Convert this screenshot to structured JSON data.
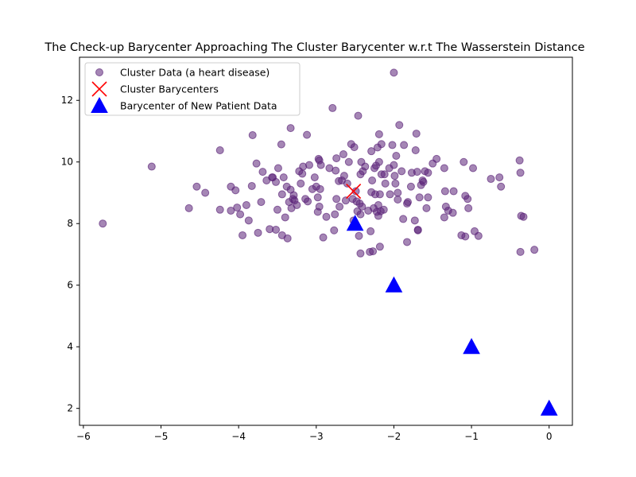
{
  "chart_data": {
    "type": "scatter",
    "title": "The Check-up Barycenter Approaching The Cluster Barycenter w.r.t The Wasserstein Distance",
    "xlabel": "",
    "ylabel": "",
    "xlim": [
      -6.05,
      0.3
    ],
    "ylim": [
      1.45,
      13.4
    ],
    "xticks": [
      -6,
      -5,
      -4,
      -3,
      -2,
      -1,
      0
    ],
    "yticks": [
      2,
      4,
      6,
      8,
      10,
      12
    ],
    "grid": false,
    "legend_position": "top-left",
    "series": [
      {
        "name": "Cluster Data (a heart disease)",
        "marker": "circle",
        "color": "#5b2378",
        "opacity": 0.55,
        "points": [
          [
            -5.75,
            8.0
          ],
          [
            -5.12,
            9.85
          ],
          [
            -4.64,
            8.5
          ],
          [
            -4.54,
            9.2
          ],
          [
            -4.43,
            9.0
          ],
          [
            -4.24,
            10.38
          ],
          [
            -4.24,
            8.45
          ],
          [
            -4.1,
            9.2
          ],
          [
            -4.1,
            8.42
          ],
          [
            -4.04,
            9.08
          ],
          [
            -4.02,
            8.52
          ],
          [
            -3.98,
            8.3
          ],
          [
            -3.95,
            7.62
          ],
          [
            -3.9,
            8.6
          ],
          [
            -3.87,
            8.1
          ],
          [
            -3.83,
            9.22
          ],
          [
            -3.82,
            10.87
          ],
          [
            -3.77,
            9.95
          ],
          [
            -3.75,
            7.7
          ],
          [
            -3.71,
            8.7
          ],
          [
            -3.69,
            9.68
          ],
          [
            -3.64,
            9.4
          ],
          [
            -3.6,
            7.82
          ],
          [
            -3.57,
            9.5
          ],
          [
            -3.56,
            9.5
          ],
          [
            -3.52,
            9.35
          ],
          [
            -3.52,
            7.8
          ],
          [
            -3.5,
            8.45
          ],
          [
            -3.49,
            9.8
          ],
          [
            -3.45,
            10.57
          ],
          [
            -3.44,
            8.95
          ],
          [
            -3.44,
            7.62
          ],
          [
            -3.42,
            9.5
          ],
          [
            -3.4,
            8.2
          ],
          [
            -3.38,
            9.2
          ],
          [
            -3.37,
            7.52
          ],
          [
            -3.35,
            8.7
          ],
          [
            -3.33,
            11.1
          ],
          [
            -3.33,
            9.1
          ],
          [
            -3.32,
            8.5
          ],
          [
            -3.3,
            8.8
          ],
          [
            -3.29,
            8.92
          ],
          [
            -3.28,
            8.75
          ],
          [
            -3.25,
            8.6
          ],
          [
            -3.22,
            9.7
          ],
          [
            -3.2,
            9.3
          ],
          [
            -3.18,
            9.62
          ],
          [
            -3.17,
            9.85
          ],
          [
            -3.14,
            8.8
          ],
          [
            -3.12,
            10.88
          ],
          [
            -3.11,
            8.72
          ],
          [
            -3.09,
            9.9
          ],
          [
            -3.05,
            9.12
          ],
          [
            -3.02,
            9.5
          ],
          [
            -3.0,
            9.2
          ],
          [
            -2.98,
            8.85
          ],
          [
            -2.98,
            8.38
          ],
          [
            -2.97,
            10.1
          ],
          [
            -2.96,
            8.55
          ],
          [
            -2.96,
            10.05
          ],
          [
            -2.95,
            9.12
          ],
          [
            -2.94,
            9.9
          ],
          [
            -2.91,
            7.55
          ],
          [
            -2.87,
            8.22
          ],
          [
            -2.83,
            9.8
          ],
          [
            -2.79,
            11.75
          ],
          [
            -2.77,
            7.78
          ],
          [
            -2.76,
            8.3
          ],
          [
            -2.75,
            9.72
          ],
          [
            -2.74,
            8.8
          ],
          [
            -2.74,
            10.12
          ],
          [
            -2.71,
            9.38
          ],
          [
            -2.7,
            8.55
          ],
          [
            -2.67,
            9.4
          ],
          [
            -2.65,
            10.25
          ],
          [
            -2.64,
            9.55
          ],
          [
            -2.62,
            8.75
          ],
          [
            -2.6,
            9.3
          ],
          [
            -2.58,
            10.0
          ],
          [
            -2.55,
            10.58
          ],
          [
            -2.53,
            8.8
          ],
          [
            -2.52,
            8.1
          ],
          [
            -2.51,
            10.48
          ],
          [
            -2.49,
            9.05
          ],
          [
            -2.48,
            8.72
          ],
          [
            -2.47,
            8.4
          ],
          [
            -2.46,
            11.5
          ],
          [
            -2.45,
            7.6
          ],
          [
            -2.44,
            8.65
          ],
          [
            -2.43,
            8.3
          ],
          [
            -2.43,
            9.6
          ],
          [
            -2.43,
            7.03
          ],
          [
            -2.42,
            10.0
          ],
          [
            -2.41,
            8.55
          ],
          [
            -2.4,
            9.7
          ],
          [
            -2.37,
            9.85
          ],
          [
            -2.33,
            8.42
          ],
          [
            -2.31,
            7.08
          ],
          [
            -2.3,
            7.75
          ],
          [
            -2.29,
            10.35
          ],
          [
            -2.29,
            9.02
          ],
          [
            -2.28,
            9.4
          ],
          [
            -2.27,
            7.1
          ],
          [
            -2.26,
            8.5
          ],
          [
            -2.25,
            9.8
          ],
          [
            -2.24,
            8.95
          ],
          [
            -2.23,
            9.88
          ],
          [
            -2.22,
            8.38
          ],
          [
            -2.21,
            10.47
          ],
          [
            -2.2,
            8.6
          ],
          [
            -2.2,
            8.25
          ],
          [
            -2.19,
            10.9
          ],
          [
            -2.19,
            10.0
          ],
          [
            -2.18,
            8.95
          ],
          [
            -2.18,
            7.25
          ],
          [
            -2.17,
            8.4
          ],
          [
            -2.16,
            10.58
          ],
          [
            -2.16,
            9.6
          ],
          [
            -2.13,
            8.45
          ],
          [
            -2.12,
            9.6
          ],
          [
            -2.11,
            9.3
          ],
          [
            -2.06,
            9.8
          ],
          [
            -2.05,
            8.95
          ],
          [
            -2.02,
            10.55
          ],
          [
            -2.0,
            12.9
          ],
          [
            -2.0,
            9.9
          ],
          [
            -1.99,
            9.55
          ],
          [
            -1.98,
            9.3
          ],
          [
            -1.97,
            10.2
          ],
          [
            -1.95,
            9.0
          ],
          [
            -1.95,
            8.78
          ],
          [
            -1.93,
            11.2
          ],
          [
            -1.9,
            9.7
          ],
          [
            -1.88,
            8.15
          ],
          [
            -1.87,
            10.55
          ],
          [
            -1.83,
            8.65
          ],
          [
            -1.83,
            7.4
          ],
          [
            -1.82,
            8.7
          ],
          [
            -1.78,
            9.2
          ],
          [
            -1.77,
            9.65
          ],
          [
            -1.73,
            8.1
          ],
          [
            -1.72,
            10.38
          ],
          [
            -1.71,
            10.92
          ],
          [
            -1.7,
            9.68
          ],
          [
            -1.69,
            7.8
          ],
          [
            -1.69,
            7.78
          ],
          [
            -1.67,
            8.85
          ],
          [
            -1.65,
            9.25
          ],
          [
            -1.63,
            9.4
          ],
          [
            -1.62,
            9.35
          ],
          [
            -1.6,
            9.7
          ],
          [
            -1.58,
            8.5
          ],
          [
            -1.56,
            9.65
          ],
          [
            -1.56,
            8.85
          ],
          [
            -1.5,
            9.95
          ],
          [
            -1.45,
            10.1
          ],
          [
            -1.35,
            8.2
          ],
          [
            -1.35,
            9.8
          ],
          [
            -1.34,
            9.05
          ],
          [
            -1.33,
            8.55
          ],
          [
            -1.3,
            8.42
          ],
          [
            -1.24,
            8.35
          ],
          [
            -1.23,
            9.05
          ],
          [
            -1.13,
            7.62
          ],
          [
            -1.1,
            10.0
          ],
          [
            -1.08,
            8.9
          ],
          [
            -1.08,
            7.58
          ],
          [
            -1.05,
            8.8
          ],
          [
            -1.04,
            8.5
          ],
          [
            -0.98,
            9.8
          ],
          [
            -0.96,
            7.75
          ],
          [
            -0.91,
            7.6
          ],
          [
            -0.75,
            9.45
          ],
          [
            -0.64,
            9.5
          ],
          [
            -0.62,
            9.2
          ],
          [
            -0.38,
            10.05
          ],
          [
            -0.37,
            9.65
          ],
          [
            -0.36,
            8.25
          ],
          [
            -0.33,
            8.22
          ],
          [
            -0.37,
            7.08
          ],
          [
            -0.19,
            7.15
          ]
        ]
      },
      {
        "name": "Cluster Barycenters",
        "marker": "x",
        "color": "#ff0000",
        "points": [
          [
            -2.52,
            9.05
          ]
        ]
      },
      {
        "name": "Barycenter of New Patient Data",
        "marker": "triangle",
        "color": "#0000ff",
        "points": [
          [
            -2.5,
            8.0
          ],
          [
            -2.0,
            6.0
          ],
          [
            -1.0,
            4.0
          ],
          [
            0.0,
            2.0
          ]
        ]
      }
    ]
  }
}
